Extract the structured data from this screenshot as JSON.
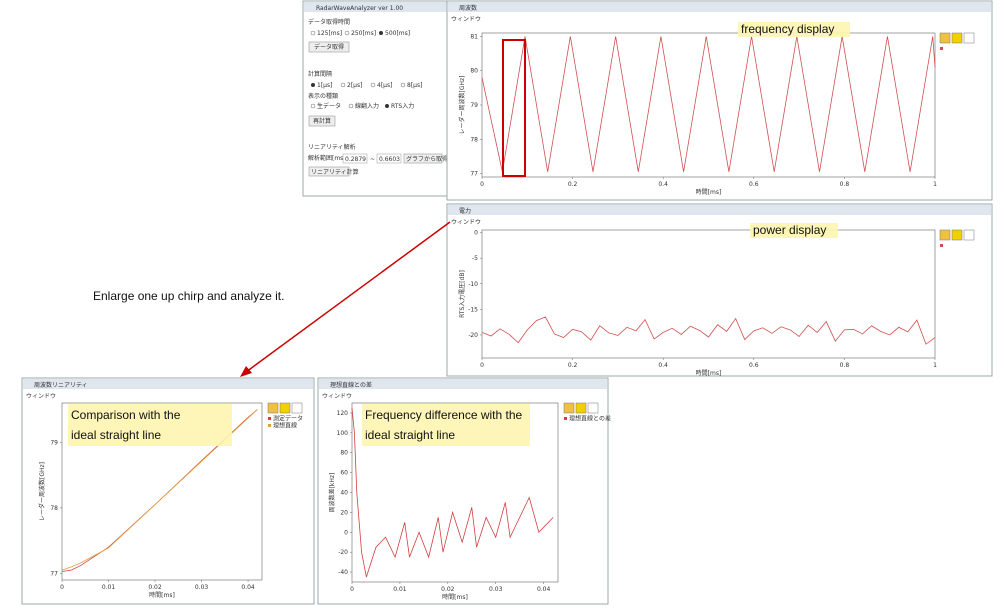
{
  "annotations": {
    "freq": "frequency display",
    "power": "power display",
    "enlarge": "Enlarge one up chirp and analyze it.",
    "comparison": "Comparison with the ideal straight line",
    "difference": "Frequency difference with the ideal straight line"
  },
  "control_panel": {
    "title": "RadarWaveAnalyzer ver 1.00",
    "acq_time": "データ取得時間",
    "acq_options": [
      "125[ms]",
      "250[ms]",
      "500[ms]"
    ],
    "acq_button": "データ取得",
    "interval": "計算間隔",
    "interval_options": [
      "1[μs]",
      "2[μs]",
      "4[μs]",
      "8[μs]"
    ],
    "display_type": "表示の種類",
    "display_options": [
      "生データ",
      "線翻入力",
      "RTS入力"
    ],
    "recalc_button": "再計算",
    "linearity": "リニアリティ解析",
    "range_label": "解析範囲[ms]",
    "range_from": "0.2879",
    "range_sep": "~",
    "range_to": "0.6603",
    "from_graph_button": "グラフから取得",
    "linearity_button": "リニアリティ計算"
  },
  "windows": [
    {
      "title": "周波数",
      "menu": "ウィンドウ"
    },
    {
      "title": "電力",
      "menu": "ウィンドウ"
    },
    {
      "title": "周波数リニアリティ",
      "menu": "ウィンドウ"
    },
    {
      "title": "理想直線との差",
      "menu": "ウィンドウ"
    }
  ],
  "chart_data": [
    {
      "type": "line",
      "xlabel": "時間[ms]",
      "ylabel": "レーダー周波数[GHz]",
      "xlim": [
        0,
        1
      ],
      "ylim": [
        76.9,
        81.1
      ],
      "xticks": [
        0,
        0.2,
        0.4,
        0.6,
        0.8,
        1
      ],
      "yticks": [
        77,
        78,
        79,
        80,
        81
      ],
      "x": [
        0,
        0.045,
        0.095,
        0.145,
        0.195,
        0.245,
        0.295,
        0.345,
        0.395,
        0.445,
        0.495,
        0.545,
        0.595,
        0.645,
        0.695,
        0.745,
        0.795,
        0.845,
        0.895,
        0.945,
        0.995,
        1
      ],
      "series": [
        {
          "color": "#d05050",
          "values": [
            79.8,
            77.05,
            81,
            77.05,
            81,
            77.05,
            81,
            77.05,
            81,
            77.05,
            81,
            77.05,
            81,
            77.05,
            81,
            77.05,
            81,
            77.05,
            81,
            77.05,
            81,
            80.1
          ]
        }
      ]
    },
    {
      "type": "line",
      "xlabel": "時間[ms]",
      "ylabel": "RTS入力電圧[dB]",
      "xlim": [
        0,
        1
      ],
      "ylim": [
        -24.5,
        0.5
      ],
      "xticks": [
        0,
        0.2,
        0.4,
        0.6,
        0.8,
        1
      ],
      "yticks": [
        0,
        -5,
        -10,
        -15,
        -20
      ],
      "x": [
        0,
        0.02,
        0.04,
        0.06,
        0.08,
        0.1,
        0.12,
        0.14,
        0.16,
        0.18,
        0.2,
        0.22,
        0.24,
        0.26,
        0.28,
        0.3,
        0.32,
        0.34,
        0.36,
        0.38,
        0.4,
        0.42,
        0.44,
        0.46,
        0.48,
        0.5,
        0.52,
        0.54,
        0.56,
        0.58,
        0.6,
        0.62,
        0.64,
        0.66,
        0.68,
        0.7,
        0.72,
        0.74,
        0.76,
        0.78,
        0.8,
        0.82,
        0.84,
        0.86,
        0.88,
        0.9,
        0.92,
        0.94,
        0.96,
        0.98,
        1
      ],
      "series": [
        {
          "color": "#d05050",
          "values": [
            -19.5,
            -20.2,
            -18.8,
            -19.9,
            -21.5,
            -19.0,
            -17.2,
            -16.5,
            -19.8,
            -20.5,
            -18.9,
            -19.4,
            -21.0,
            -18.2,
            -19.6,
            -20.1,
            -18.5,
            -19.2,
            -17.0,
            -20.8,
            -19.5,
            -18.7,
            -19.9,
            -18.3,
            -19.1,
            -20.4,
            -18.0,
            -19.3,
            -16.8,
            -20.9,
            -19.2,
            -18.6,
            -19.7,
            -18.4,
            -19.0,
            -20.3,
            -18.1,
            -19.5,
            -17.4,
            -21.2,
            -19.0,
            -18.9,
            -19.8,
            -18.2,
            -19.3,
            -20.0,
            -18.5,
            -19.4,
            -17.1,
            -21.8,
            -20.5
          ]
        }
      ]
    },
    {
      "type": "line",
      "xlabel": "時間[ms]",
      "ylabel": "レーダー周波数[GHz]",
      "xlim": [
        0,
        0.043
      ],
      "ylim": [
        76.9,
        79.6
      ],
      "xticks": [
        0,
        0.01,
        0.02,
        0.03,
        0.04
      ],
      "yticks": [
        77,
        78,
        79
      ],
      "x": [
        0,
        0.002,
        0.004,
        0.01,
        0.02,
        0.03,
        0.04,
        0.042
      ],
      "series": [
        {
          "name": "測定データ",
          "color": "#d04040",
          "values": [
            77.03,
            77.05,
            77.12,
            77.4,
            78.05,
            78.72,
            79.38,
            79.5
          ]
        },
        {
          "name": "理想直線",
          "color": "#e0a040",
          "values": [
            77.05,
            77.1,
            77.16,
            77.39,
            78.05,
            78.71,
            79.37,
            79.5
          ]
        }
      ]
    },
    {
      "type": "line",
      "xlabel": "時間[ms]",
      "ylabel": "周波数差[kHz]",
      "xlim": [
        0,
        0.043
      ],
      "ylim": [
        -50,
        130
      ],
      "xticks": [
        0,
        0.01,
        0.02,
        0.03,
        0.04
      ],
      "yticks": [
        120,
        100,
        80,
        60,
        40,
        20,
        0,
        -20,
        -40
      ],
      "x": [
        0,
        0.0005,
        0.001,
        0.002,
        0.003,
        0.005,
        0.007,
        0.009,
        0.011,
        0.012,
        0.014,
        0.016,
        0.018,
        0.019,
        0.021,
        0.023,
        0.025,
        0.026,
        0.028,
        0.03,
        0.032,
        0.033,
        0.035,
        0.037,
        0.039,
        0.04,
        0.042
      ],
      "series": [
        {
          "name": "理想直線との差",
          "color": "#d04040",
          "values": [
            125,
            100,
            40,
            -20,
            -45,
            -15,
            -5,
            -25,
            10,
            -25,
            0,
            -25,
            15,
            -20,
            20,
            -10,
            25,
            -15,
            15,
            -5,
            30,
            -5,
            15,
            35,
            0,
            5,
            15
          ]
        }
      ]
    }
  ]
}
